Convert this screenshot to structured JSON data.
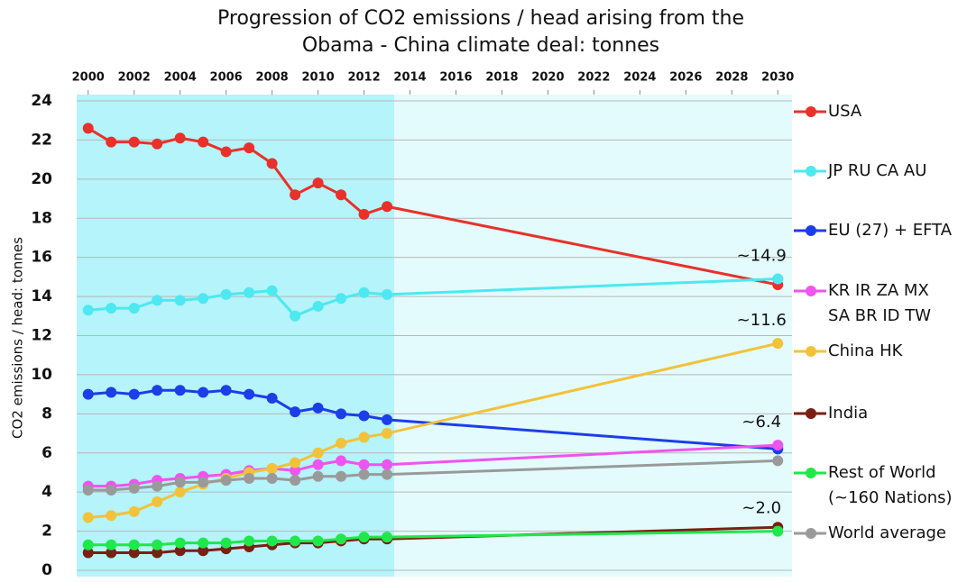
{
  "chart_data": {
    "type": "line",
    "title": "Progression of CO2 emissions / head arising from the\nObama - China climate deal:  tonnes",
    "y_label": "CO2 emissions / head: tonnes",
    "x": [
      2000,
      2001,
      2002,
      2003,
      2004,
      2005,
      2006,
      2007,
      2008,
      2009,
      2010,
      2011,
      2012,
      2013,
      2030
    ],
    "xlim": [
      1999.5,
      2030.5
    ],
    "xticks": [
      2000,
      2002,
      2004,
      2006,
      2008,
      2010,
      2012,
      2014,
      2016,
      2018,
      2020,
      2022,
      2024,
      2026,
      2028,
      2030
    ],
    "ylim": [
      0,
      24
    ],
    "yticks": [
      0,
      2,
      4,
      6,
      8,
      10,
      12,
      14,
      16,
      18,
      20,
      22,
      24
    ],
    "grid": true,
    "legend": "right",
    "series": [
      {
        "name": "USA",
        "color": "#e8312a",
        "values": [
          22.6,
          21.9,
          21.9,
          21.8,
          22.1,
          21.9,
          21.4,
          21.6,
          20.8,
          19.2,
          19.8,
          19.2,
          18.2,
          18.6,
          14.6
        ]
      },
      {
        "name": "JP RU CA AU",
        "color": "#4de8f0",
        "values": [
          13.3,
          13.4,
          13.4,
          13.8,
          13.8,
          13.9,
          14.1,
          14.2,
          14.3,
          13.0,
          13.5,
          13.9,
          14.2,
          14.1,
          14.9
        ]
      },
      {
        "name": "EU (27) + EFTA",
        "color": "#1c3ee8",
        "values": [
          9.0,
          9.1,
          9.0,
          9.2,
          9.2,
          9.1,
          9.2,
          9.0,
          8.8,
          8.1,
          8.3,
          8.0,
          7.9,
          7.7,
          6.2
        ]
      },
      {
        "name": "KR IR ZA MX\nSA BR ID TW",
        "color": "#f053f0",
        "values": [
          4.3,
          4.3,
          4.4,
          4.6,
          4.7,
          4.8,
          4.9,
          5.1,
          5.2,
          5.1,
          5.4,
          5.6,
          5.4,
          5.4,
          6.4
        ]
      },
      {
        "name": "China HK",
        "color": "#f2c23a",
        "values": [
          2.7,
          2.8,
          3.0,
          3.5,
          4.0,
          4.4,
          4.7,
          5.0,
          5.2,
          5.5,
          6.0,
          6.5,
          6.8,
          7.0,
          11.6
        ]
      },
      {
        "name": "India",
        "color": "#7a1f14",
        "values": [
          0.9,
          0.9,
          0.9,
          0.9,
          1.0,
          1.0,
          1.1,
          1.2,
          1.3,
          1.4,
          1.4,
          1.5,
          1.6,
          1.6,
          2.2
        ]
      },
      {
        "name": "Rest of World\n(~160 Nations)",
        "color": "#1ee84a",
        "values": [
          1.3,
          1.3,
          1.3,
          1.3,
          1.4,
          1.4,
          1.4,
          1.5,
          1.5,
          1.5,
          1.5,
          1.6,
          1.7,
          1.7,
          2.0
        ]
      },
      {
        "name": "World average",
        "color": "#9a9a9a",
        "values": [
          4.1,
          4.1,
          4.2,
          4.3,
          4.5,
          4.5,
          4.6,
          4.7,
          4.7,
          4.6,
          4.8,
          4.8,
          4.9,
          4.9,
          5.6
        ]
      }
    ],
    "annotations": [
      {
        "text": "~14.9",
        "value": 14.9
      },
      {
        "text": "~11.6",
        "value": 11.6
      },
      {
        "text": "~6.4",
        "value": 6.4
      },
      {
        "text": "~2.0",
        "value": 2.0
      }
    ]
  }
}
